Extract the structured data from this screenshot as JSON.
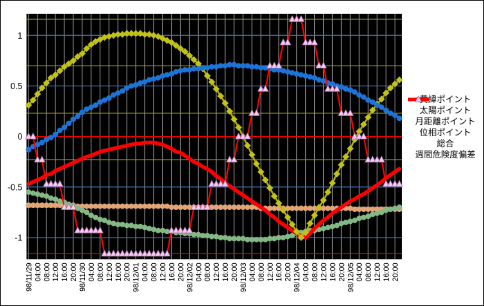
{
  "chart_data": {
    "type": "line",
    "title": "",
    "legend_position": "right",
    "background": "#000000",
    "vertical_gridline_color": "#808080",
    "x_step_hours": 2,
    "x_tick_labels": [
      "98/11/29",
      "04:00",
      "08:00",
      "12:00",
      "16:00",
      "20:00",
      "98/11/30",
      "04:00",
      "08:00",
      "12:00",
      "16:00",
      "20:00",
      "98/12/01",
      "04:00",
      "08:00",
      "12:00",
      "16:00",
      "20:00",
      "98/12/02",
      "04:00",
      "08:00",
      "12:00",
      "16:00",
      "20:00",
      "98/12/03",
      "04:00",
      "08:00",
      "12:00",
      "16:00",
      "20:00",
      "98/12/04",
      "04:00",
      "08:00",
      "12:00",
      "16:00",
      "20:00",
      "98/12/05",
      "04:00",
      "08:00",
      "12:00",
      "16:00",
      "20:00"
    ],
    "y_ticks": [
      {
        "label": "1",
        "value": 1
      },
      {
        "label": "0.5",
        "value": 0.5
      },
      {
        "label": "0",
        "value": 0
      },
      {
        "label": "-0.5",
        "value": -0.5
      },
      {
        "label": "-1",
        "value": -1
      }
    ],
    "ylim": [
      -1.215,
      1.215
    ],
    "gridlines_h": [
      {
        "value": 1.16,
        "color": "#A0A016"
      },
      {
        "value": 1.0,
        "color": "#3C7EBF"
      },
      {
        "value": 0.7,
        "color": "#A0A016"
      },
      {
        "value": 0.5,
        "color": "#3C7EBF"
      },
      {
        "value": 0.23,
        "color": "#A0A016"
      },
      {
        "value": 0.0,
        "color": "#FF0000"
      },
      {
        "value": -0.23,
        "color": "#A0A016"
      },
      {
        "value": -0.5,
        "color": "#3C7EBF"
      },
      {
        "value": -0.7,
        "color": "#A0A016"
      },
      {
        "value": -1.0,
        "color": "#3C7EBF"
      },
      {
        "value": -1.16,
        "color": "#FF0000"
      }
    ],
    "series": [
      {
        "name": "黄緯ポイント",
        "marker": "circle",
        "line_color": "#3E86CC",
        "marker_color": "#1C74D8",
        "line_width": 2.5,
        "values": [
          -0.13,
          -0.1,
          -0.08,
          -0.06,
          -0.03,
          -0.01,
          0.02,
          0.06,
          0.09,
          0.13,
          0.17,
          0.2,
          0.24,
          0.27,
          0.29,
          0.31,
          0.34,
          0.36,
          0.38,
          0.41,
          0.43,
          0.45,
          0.48,
          0.5,
          0.51,
          0.53,
          0.54,
          0.56,
          0.57,
          0.58,
          0.6,
          0.61,
          0.62,
          0.64,
          0.65,
          0.66,
          0.66,
          0.67,
          0.67,
          0.68,
          0.68,
          0.69,
          0.69,
          0.7,
          0.7,
          0.71,
          0.71,
          0.7,
          0.7,
          0.7,
          0.69,
          0.69,
          0.68,
          0.68,
          0.67,
          0.66,
          0.66,
          0.65,
          0.64,
          0.63,
          0.62,
          0.61,
          0.6,
          0.59,
          0.58,
          0.56,
          0.55,
          0.53,
          0.52,
          0.5,
          0.49,
          0.47,
          0.46,
          0.44,
          0.41,
          0.39,
          0.36,
          0.34,
          0.31,
          0.29,
          0.26,
          0.23,
          0.21,
          0.18
        ]
      },
      {
        "name": "太陽ポイント",
        "marker": "circle",
        "line_color": "#F0C49C",
        "marker_color": "#E2A578",
        "line_width": 2.5,
        "values": [
          -0.68,
          -0.68,
          -0.68,
          -0.68,
          -0.68,
          -0.68,
          -0.68,
          -0.68,
          -0.68,
          -0.68,
          -0.68,
          -0.69,
          -0.69,
          -0.69,
          -0.69,
          -0.69,
          -0.69,
          -0.69,
          -0.69,
          -0.69,
          -0.69,
          -0.69,
          -0.69,
          -0.69,
          -0.69,
          -0.69,
          -0.69,
          -0.69,
          -0.69,
          -0.69,
          -0.69,
          -0.69,
          -0.7,
          -0.7,
          -0.7,
          -0.7,
          -0.7,
          -0.7,
          -0.7,
          -0.7,
          -0.7,
          -0.7,
          -0.7,
          -0.7,
          -0.7,
          -0.7,
          -0.7,
          -0.7,
          -0.7,
          -0.7,
          -0.7,
          -0.7,
          -0.71,
          -0.71,
          -0.71,
          -0.71,
          -0.71,
          -0.71,
          -0.71,
          -0.71,
          -0.71,
          -0.71,
          -0.71,
          -0.71,
          -0.71,
          -0.71,
          -0.71,
          -0.71,
          -0.71,
          -0.71,
          -0.71,
          -0.71,
          -0.71,
          -0.72,
          -0.72,
          -0.72,
          -0.72,
          -0.72,
          -0.72,
          -0.72,
          -0.72,
          -0.72,
          -0.72,
          -0.72
        ]
      },
      {
        "name": "月距離ポイント",
        "marker": "circle",
        "line_color": "#9CC89C",
        "marker_color": "#84B884",
        "line_width": 2.5,
        "values": [
          -0.55,
          -0.56,
          -0.57,
          -0.58,
          -0.59,
          -0.61,
          -0.62,
          -0.64,
          -0.65,
          -0.67,
          -0.69,
          -0.71,
          -0.73,
          -0.75,
          -0.78,
          -0.8,
          -0.82,
          -0.83,
          -0.85,
          -0.86,
          -0.87,
          -0.87,
          -0.88,
          -0.88,
          -0.89,
          -0.89,
          -0.9,
          -0.91,
          -0.92,
          -0.93,
          -0.93,
          -0.94,
          -0.94,
          -0.95,
          -0.95,
          -0.96,
          -0.96,
          -0.97,
          -0.97,
          -0.98,
          -0.98,
          -0.99,
          -0.99,
          -1.0,
          -1.0,
          -1.01,
          -1.01,
          -1.01,
          -1.01,
          -1.02,
          -1.02,
          -1.02,
          -1.02,
          -1.02,
          -1.01,
          -1.01,
          -1.0,
          -1.0,
          -0.99,
          -0.98,
          -0.96,
          -0.95,
          -0.94,
          -0.93,
          -0.93,
          -0.92,
          -0.91,
          -0.9,
          -0.89,
          -0.88,
          -0.86,
          -0.85,
          -0.84,
          -0.83,
          -0.81,
          -0.8,
          -0.79,
          -0.77,
          -0.76,
          -0.75,
          -0.73,
          -0.72,
          -0.71,
          -0.7
        ]
      },
      {
        "name": "位相ポイント",
        "marker": "diamond",
        "line_color": "#B4B400",
        "marker_color": "#C2C21A",
        "line_width": 2.5,
        "values": [
          0.31,
          0.36,
          0.42,
          0.48,
          0.53,
          0.58,
          0.61,
          0.65,
          0.69,
          0.72,
          0.75,
          0.79,
          0.82,
          0.87,
          0.91,
          0.94,
          0.96,
          0.98,
          0.99,
          1.0,
          1.01,
          1.01,
          1.02,
          1.02,
          1.02,
          1.02,
          1.01,
          1.01,
          1.0,
          0.99,
          0.97,
          0.95,
          0.93,
          0.9,
          0.87,
          0.84,
          0.8,
          0.76,
          0.72,
          0.67,
          0.6,
          0.54,
          0.47,
          0.4,
          0.33,
          0.25,
          0.17,
          0.09,
          0.0,
          -0.09,
          -0.18,
          -0.27,
          -0.35,
          -0.43,
          -0.51,
          -0.59,
          -0.66,
          -0.73,
          -0.8,
          -0.87,
          -0.94,
          -1.0,
          -0.95,
          -0.86,
          -0.78,
          -0.7,
          -0.63,
          -0.55,
          -0.46,
          -0.37,
          -0.28,
          -0.2,
          -0.12,
          -0.03,
          0.05,
          0.12,
          0.19,
          0.26,
          0.32,
          0.37,
          0.43,
          0.48,
          0.52,
          0.56
        ]
      },
      {
        "name": "総合",
        "marker": "none",
        "line_color": "#FF0000",
        "marker_color": "#FF0000",
        "line_width": 5.5,
        "values": [
          -0.47,
          -0.45,
          -0.43,
          -0.41,
          -0.38,
          -0.37,
          -0.34,
          -0.32,
          -0.3,
          -0.28,
          -0.26,
          -0.24,
          -0.22,
          -0.2,
          -0.19,
          -0.17,
          -0.15,
          -0.14,
          -0.13,
          -0.12,
          -0.11,
          -0.1,
          -0.09,
          -0.08,
          -0.07,
          -0.07,
          -0.06,
          -0.06,
          -0.06,
          -0.07,
          -0.08,
          -0.1,
          -0.12,
          -0.15,
          -0.16,
          -0.19,
          -0.22,
          -0.25,
          -0.27,
          -0.3,
          -0.32,
          -0.35,
          -0.39,
          -0.42,
          -0.46,
          -0.49,
          -0.52,
          -0.55,
          -0.58,
          -0.61,
          -0.64,
          -0.67,
          -0.7,
          -0.73,
          -0.77,
          -0.8,
          -0.84,
          -0.87,
          -0.9,
          -0.93,
          -0.96,
          -0.99,
          -1.0,
          -0.96,
          -0.91,
          -0.87,
          -0.83,
          -0.8,
          -0.76,
          -0.73,
          -0.7,
          -0.67,
          -0.64,
          -0.62,
          -0.59,
          -0.57,
          -0.54,
          -0.51,
          -0.48,
          -0.45,
          -0.41,
          -0.38,
          -0.35,
          -0.32
        ]
      },
      {
        "name": "週間危険度偏差",
        "marker": "triangle",
        "line_color": "#FF0000",
        "marker_color": "#F2CEF2",
        "marker_stroke": "#A868A8",
        "line_width": 2.2,
        "values": [
          0,
          0,
          -0.23,
          -0.23,
          -0.47,
          -0.47,
          -0.47,
          -0.47,
          -0.7,
          -0.7,
          -0.7,
          -0.93,
          -0.93,
          -0.93,
          -0.93,
          -0.93,
          -0.93,
          -1.16,
          -1.16,
          -1.16,
          -1.16,
          -1.16,
          -1.16,
          -1.16,
          -1.16,
          -1.16,
          -1.16,
          -1.16,
          -1.16,
          -1.16,
          -1.16,
          -1.16,
          -0.93,
          -0.93,
          -0.93,
          -0.93,
          -0.93,
          -0.7,
          -0.7,
          -0.7,
          -0.7,
          -0.47,
          -0.47,
          -0.47,
          -0.47,
          -0.23,
          -0.23,
          0,
          0,
          0,
          0.23,
          0.23,
          0.47,
          0.47,
          0.7,
          0.7,
          0.7,
          0.93,
          0.93,
          1.16,
          1.16,
          1.16,
          0.93,
          0.93,
          0.93,
          0.7,
          0.7,
          0.47,
          0.47,
          0.47,
          0.23,
          0.23,
          0.23,
          0,
          0,
          0,
          -0.23,
          -0.23,
          -0.23,
          -0.23,
          -0.47,
          -0.47,
          -0.47,
          -0.47
        ]
      }
    ]
  }
}
